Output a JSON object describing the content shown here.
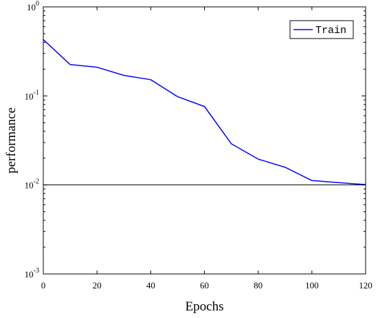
{
  "chart_data": {
    "type": "line",
    "xlabel": "Epochs",
    "ylabel": "performance",
    "xlim": [
      0,
      120
    ],
    "ylim": [
      0.001,
      1
    ],
    "yscale": "log",
    "grid": false,
    "legend_position": "top-right",
    "x_ticks": [
      0,
      20,
      40,
      60,
      80,
      100,
      120
    ],
    "y_ticks": [
      {
        "value": 1,
        "base": "10",
        "exp": "0"
      },
      {
        "value": 0.1,
        "base": "10",
        "exp": "-1"
      },
      {
        "value": 0.01,
        "base": "10",
        "exp": "-2"
      },
      {
        "value": 0.001,
        "base": "10",
        "exp": "-3"
      }
    ],
    "series": [
      {
        "name": "Train",
        "color": "#0000ff",
        "x": [
          0,
          10,
          20,
          30,
          40,
          50,
          60,
          70,
          80,
          90,
          100,
          110,
          120
        ],
        "y": [
          0.43,
          0.225,
          0.21,
          0.17,
          0.152,
          0.098,
          0.076,
          0.029,
          0.0195,
          0.0158,
          0.0112,
          0.0106,
          0.0101
        ]
      }
    ],
    "reference_lines": [
      {
        "y": 0.01,
        "color": "#000000"
      }
    ]
  }
}
